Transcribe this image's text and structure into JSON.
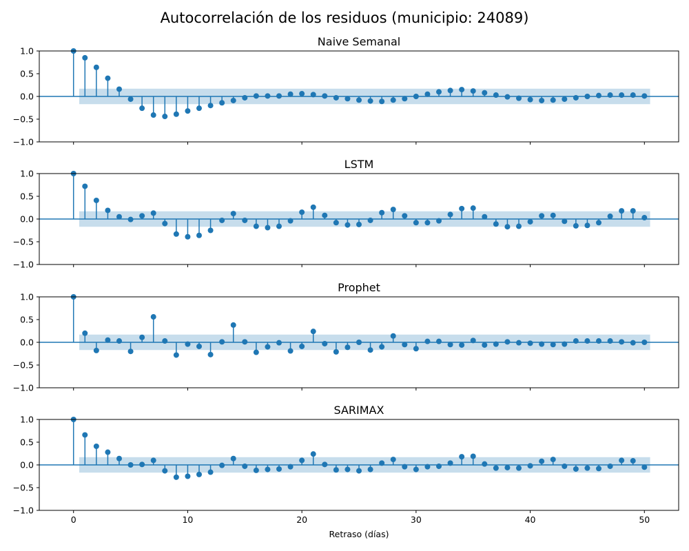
{
  "figure": {
    "title": "Autocorrelación de los residuos (municipio: 24089)",
    "xlabel": "Retraso (días)"
  },
  "colors": {
    "stem": "#1f77b4",
    "band": "#1f77b4",
    "zero_line": "#1f77b4",
    "axes": "#000000",
    "background": "#ffffff"
  },
  "chart_data": [
    {
      "type": "stem",
      "title": "Naive Semanal",
      "xlim": [
        -3,
        53
      ],
      "ylim": [
        -1.0,
        1.0
      ],
      "x_ticks": [
        0,
        10,
        20,
        30,
        40,
        50
      ],
      "y_ticks": [
        "1.0",
        "0.5",
        "0.0",
        "−0.5",
        "−1.0"
      ],
      "confidence_band": [
        -0.17,
        0.17
      ],
      "lags": [
        0,
        1,
        2,
        3,
        4,
        5,
        6,
        7,
        8,
        9,
        10,
        11,
        12,
        13,
        14,
        15,
        16,
        17,
        18,
        19,
        20,
        21,
        22,
        23,
        24,
        25,
        26,
        27,
        28,
        29,
        30,
        31,
        32,
        33,
        34,
        35,
        36,
        37,
        38,
        39,
        40,
        41,
        42,
        43,
        44,
        45,
        46,
        47,
        48,
        49,
        50
      ],
      "values": [
        1.0,
        0.85,
        0.64,
        0.4,
        0.16,
        -0.06,
        -0.26,
        -0.41,
        -0.44,
        -0.39,
        -0.32,
        -0.26,
        -0.2,
        -0.14,
        -0.09,
        -0.03,
        0.01,
        0.01,
        0.01,
        0.05,
        0.06,
        0.04,
        0.01,
        -0.03,
        -0.05,
        -0.08,
        -0.1,
        -0.11,
        -0.08,
        -0.05,
        0.0,
        0.05,
        0.1,
        0.13,
        0.15,
        0.12,
        0.08,
        0.03,
        -0.01,
        -0.04,
        -0.07,
        -0.09,
        -0.08,
        -0.06,
        -0.03,
        0.0,
        0.02,
        0.03,
        0.03,
        0.03,
        0.01
      ]
    },
    {
      "type": "stem",
      "title": "LSTM",
      "xlim": [
        -3,
        53
      ],
      "ylim": [
        -1.0,
        1.0
      ],
      "x_ticks": [
        0,
        10,
        20,
        30,
        40,
        50
      ],
      "y_ticks": [
        "1.0",
        "0.5",
        "0.0",
        "−0.5",
        "−1.0"
      ],
      "confidence_band": [
        -0.17,
        0.17
      ],
      "lags": [
        0,
        1,
        2,
        3,
        4,
        5,
        6,
        7,
        8,
        9,
        10,
        11,
        12,
        13,
        14,
        15,
        16,
        17,
        18,
        19,
        20,
        21,
        22,
        23,
        24,
        25,
        26,
        27,
        28,
        29,
        30,
        31,
        32,
        33,
        34,
        35,
        36,
        37,
        38,
        39,
        40,
        41,
        42,
        43,
        44,
        45,
        46,
        47,
        48,
        49,
        50
      ],
      "values": [
        1.0,
        0.72,
        0.41,
        0.19,
        0.05,
        -0.01,
        0.07,
        0.13,
        -0.1,
        -0.33,
        -0.39,
        -0.36,
        -0.25,
        -0.03,
        0.12,
        -0.03,
        -0.16,
        -0.19,
        -0.16,
        -0.04,
        0.15,
        0.26,
        0.08,
        -0.08,
        -0.13,
        -0.12,
        -0.03,
        0.14,
        0.21,
        0.07,
        -0.08,
        -0.08,
        -0.04,
        0.1,
        0.23,
        0.24,
        0.05,
        -0.11,
        -0.17,
        -0.16,
        -0.06,
        0.07,
        0.08,
        -0.05,
        -0.15,
        -0.14,
        -0.08,
        0.06,
        0.18,
        0.18,
        0.03
      ]
    },
    {
      "type": "stem",
      "title": "Prophet",
      "xlim": [
        -3,
        53
      ],
      "ylim": [
        -1.0,
        1.0
      ],
      "x_ticks": [
        0,
        10,
        20,
        30,
        40,
        50
      ],
      "y_ticks": [
        "1.0",
        "0.5",
        "0.0",
        "−0.5",
        "−1.0"
      ],
      "confidence_band": [
        -0.17,
        0.17
      ],
      "lags": [
        0,
        1,
        2,
        3,
        4,
        5,
        6,
        7,
        8,
        9,
        10,
        11,
        12,
        13,
        14,
        15,
        16,
        17,
        18,
        19,
        20,
        21,
        22,
        23,
        24,
        25,
        26,
        27,
        28,
        29,
        30,
        31,
        32,
        33,
        34,
        35,
        36,
        37,
        38,
        39,
        40,
        41,
        42,
        43,
        44,
        45,
        46,
        47,
        48,
        49,
        50
      ],
      "values": [
        1.0,
        0.2,
        -0.18,
        0.05,
        0.03,
        -0.2,
        0.11,
        0.56,
        0.03,
        -0.28,
        -0.04,
        -0.09,
        -0.27,
        0.01,
        0.38,
        0.01,
        -0.22,
        -0.1,
        -0.01,
        -0.19,
        -0.09,
        0.24,
        -0.03,
        -0.21,
        -0.11,
        0.0,
        -0.17,
        -0.1,
        0.14,
        -0.05,
        -0.14,
        0.02,
        0.02,
        -0.05,
        -0.06,
        0.04,
        -0.06,
        -0.04,
        0.01,
        -0.01,
        -0.02,
        -0.04,
        -0.05,
        -0.04,
        0.03,
        0.03,
        0.03,
        0.03,
        0.01,
        -0.01,
        0.0
      ]
    },
    {
      "type": "stem",
      "title": "SARIMAX",
      "xlim": [
        -3,
        53
      ],
      "ylim": [
        -1.0,
        1.0
      ],
      "x_ticks": [
        0,
        10,
        20,
        30,
        40,
        50
      ],
      "y_ticks": [
        "1.0",
        "0.5",
        "0.0",
        "−0.5",
        "−1.0"
      ],
      "confidence_band": [
        -0.17,
        0.17
      ],
      "lags": [
        0,
        1,
        2,
        3,
        4,
        5,
        6,
        7,
        8,
        9,
        10,
        11,
        12,
        13,
        14,
        15,
        16,
        17,
        18,
        19,
        20,
        21,
        22,
        23,
        24,
        25,
        26,
        27,
        28,
        29,
        30,
        31,
        32,
        33,
        34,
        35,
        36,
        37,
        38,
        39,
        40,
        41,
        42,
        43,
        44,
        45,
        46,
        47,
        48,
        49,
        50
      ],
      "values": [
        1.0,
        0.66,
        0.41,
        0.28,
        0.14,
        0.0,
        0.01,
        0.1,
        -0.13,
        -0.27,
        -0.25,
        -0.21,
        -0.16,
        -0.01,
        0.14,
        -0.03,
        -0.12,
        -0.1,
        -0.09,
        -0.04,
        0.1,
        0.24,
        0.01,
        -0.11,
        -0.1,
        -0.13,
        -0.1,
        0.04,
        0.12,
        -0.04,
        -0.1,
        -0.04,
        -0.03,
        0.04,
        0.18,
        0.19,
        0.02,
        -0.07,
        -0.06,
        -0.07,
        -0.02,
        0.08,
        0.12,
        -0.03,
        -0.09,
        -0.07,
        -0.08,
        -0.03,
        0.1,
        0.09,
        -0.05
      ]
    }
  ]
}
